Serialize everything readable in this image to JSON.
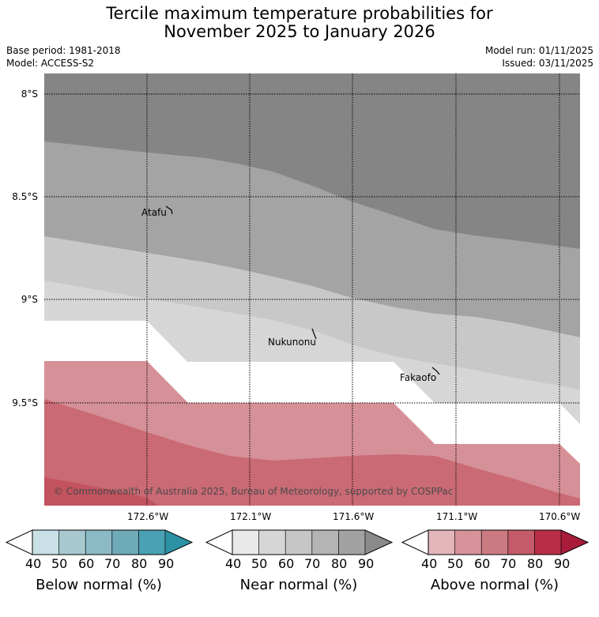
{
  "title": {
    "line1": "Tercile maximum temperature probabilities for",
    "line2": "November 2025 to January 2026"
  },
  "meta": {
    "base_period": "Base period: 1981-2018",
    "model": "Model: ACCESS-S2",
    "model_run": "Model run: 01/11/2025",
    "issued": "Issued: 03/11/2025"
  },
  "map": {
    "lat_labels": [
      "8°S",
      "8.5°S",
      "9°S",
      "9.5°S"
    ],
    "lon_labels": [
      "172.6°W",
      "172.1°W",
      "171.6°W",
      "171.1°W",
      "170.6°W"
    ],
    "places": [
      "Atafu",
      "Nukunonu",
      "Fakaofo"
    ],
    "copyright": "© Commonwealth of Australia 2025, Bureau of Meteorology, supported by COSPPac",
    "colors": {
      "near_70": "#c8c8c8",
      "near_80": "#a4a4a4",
      "near_90": "#858585",
      "near_60": "#d6d6d6",
      "above_50": "#d69097",
      "above_60": "#ca6a74",
      "above_70": "#c2535f"
    }
  },
  "colorbars": [
    {
      "title": "Below normal (%)",
      "ticks": [
        "40",
        "50",
        "60",
        "70",
        "80",
        "90"
      ],
      "colors": [
        "#c9e1e6",
        "#a8c8cf",
        "#8bbac5",
        "#6eaab8",
        "#4aa1b3",
        "#2d92a6"
      ]
    },
    {
      "title": "Near normal (%)",
      "ticks": [
        "40",
        "50",
        "60",
        "70",
        "80",
        "90"
      ],
      "colors": [
        "#e9e9e9",
        "#d6d6d6",
        "#c6c6c6",
        "#b4b4b4",
        "#a2a2a2",
        "#8a8a8a"
      ]
    },
    {
      "title": "Above normal (%)",
      "ticks": [
        "40",
        "50",
        "60",
        "70",
        "80",
        "90"
      ],
      "colors": [
        "#e2b6bb",
        "#d6939a",
        "#cc7a82",
        "#c45b68",
        "#b82f45",
        "#a81c3a"
      ]
    }
  ]
}
